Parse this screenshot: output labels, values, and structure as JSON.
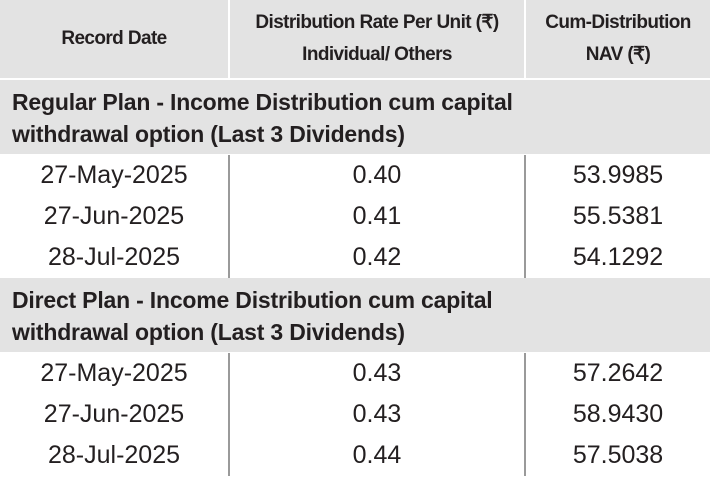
{
  "table": {
    "header": [
      [
        "Record Date"
      ],
      [
        "Distribution Rate Per Unit (₹)",
        "Individual/ Others"
      ],
      [
        "Cum-Distribution",
        "NAV (₹)"
      ]
    ],
    "sections": [
      {
        "title": [
          "Regular Plan - Income Distribution cum capital",
          "withdrawal option (Last 3 Dividends)"
        ],
        "rows": [
          [
            "27-May-2025",
            "0.40",
            "53.9985"
          ],
          [
            "27-Jun-2025",
            "0.41",
            "55.5381"
          ],
          [
            "28-Jul-2025",
            "0.42",
            "54.1292"
          ]
        ]
      },
      {
        "title": [
          "Direct Plan - Income Distribution cum capital",
          "withdrawal option (Last 3 Dividends)"
        ],
        "rows": [
          [
            "27-May-2025",
            "0.43",
            "57.2642"
          ],
          [
            "27-Jun-2025",
            "0.43",
            "58.9430"
          ],
          [
            "28-Jul-2025",
            "0.44",
            "57.5038"
          ]
        ]
      }
    ]
  }
}
